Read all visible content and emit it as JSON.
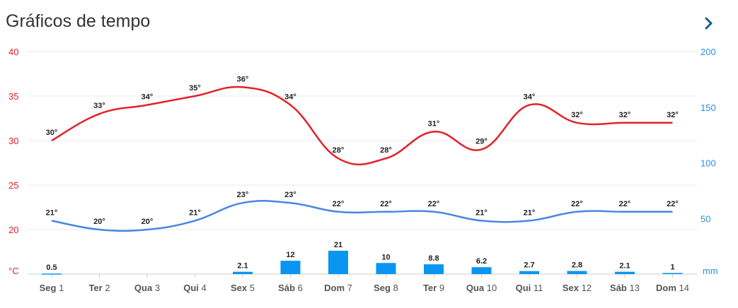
{
  "header": {
    "title": "Gráficos de tempo",
    "next_icon": "chevron-right-icon"
  },
  "colors": {
    "max_temp": "#e3202a",
    "min_temp": "#4a86e0",
    "precip": "#0a96f0",
    "grid": "#e8e8e8",
    "right_axis": "#2d8fe0",
    "left_axis": "#e3202a",
    "next_icon": "#1b5e8a"
  },
  "chart_data": {
    "type": "line",
    "categories": [
      "Seg 1",
      "Ter 2",
      "Qua 3",
      "Qui 4",
      "Sex 5",
      "Sáb 6",
      "Dom 7",
      "Seg 8",
      "Ter 9",
      "Qua 10",
      "Qui 11",
      "Sex 12",
      "Sáb 13",
      "Dom 14"
    ],
    "series": [
      {
        "type": "line",
        "axis": "left",
        "values": [
          30,
          33,
          34,
          35,
          36,
          34,
          28,
          28,
          31,
          29,
          34,
          32,
          32,
          32
        ],
        "labels": [
          "30°",
          "33°",
          "34°",
          "35°",
          "36°",
          "34°",
          "28°",
          "28°",
          "31°",
          "29°",
          "34°",
          "32°",
          "32°",
          "32°"
        ]
      },
      {
        "type": "line",
        "axis": "left",
        "values": [
          21,
          20,
          20,
          21,
          23,
          23,
          22,
          22,
          22,
          21,
          21,
          22,
          22,
          22
        ],
        "labels": [
          "21°",
          "20°",
          "20°",
          "21°",
          "23°",
          "23°",
          "22°",
          "22°",
          "22°",
          "21°",
          "21°",
          "22°",
          "22°",
          "22°"
        ]
      },
      {
        "type": "bar",
        "axis": "right",
        "values": [
          0.5,
          0,
          0,
          0,
          2.1,
          12,
          21,
          10,
          8.8,
          6.2,
          2.7,
          2.8,
          2.1,
          1
        ],
        "labels": [
          "0.5",
          "",
          "",
          "",
          "2.1",
          "12",
          "21",
          "10",
          "8.8",
          "6.2",
          "2.7",
          "2.8",
          "2.1",
          "1"
        ]
      }
    ],
    "y_left": {
      "ticks": [
        "40",
        "35",
        "30",
        "25",
        "20"
      ],
      "unit": "°C",
      "range": [
        15,
        40
      ]
    },
    "y_right": {
      "ticks": [
        "200",
        "150",
        "100",
        "50"
      ],
      "unit": "mm",
      "range": [
        0,
        200
      ]
    },
    "grid": true
  }
}
